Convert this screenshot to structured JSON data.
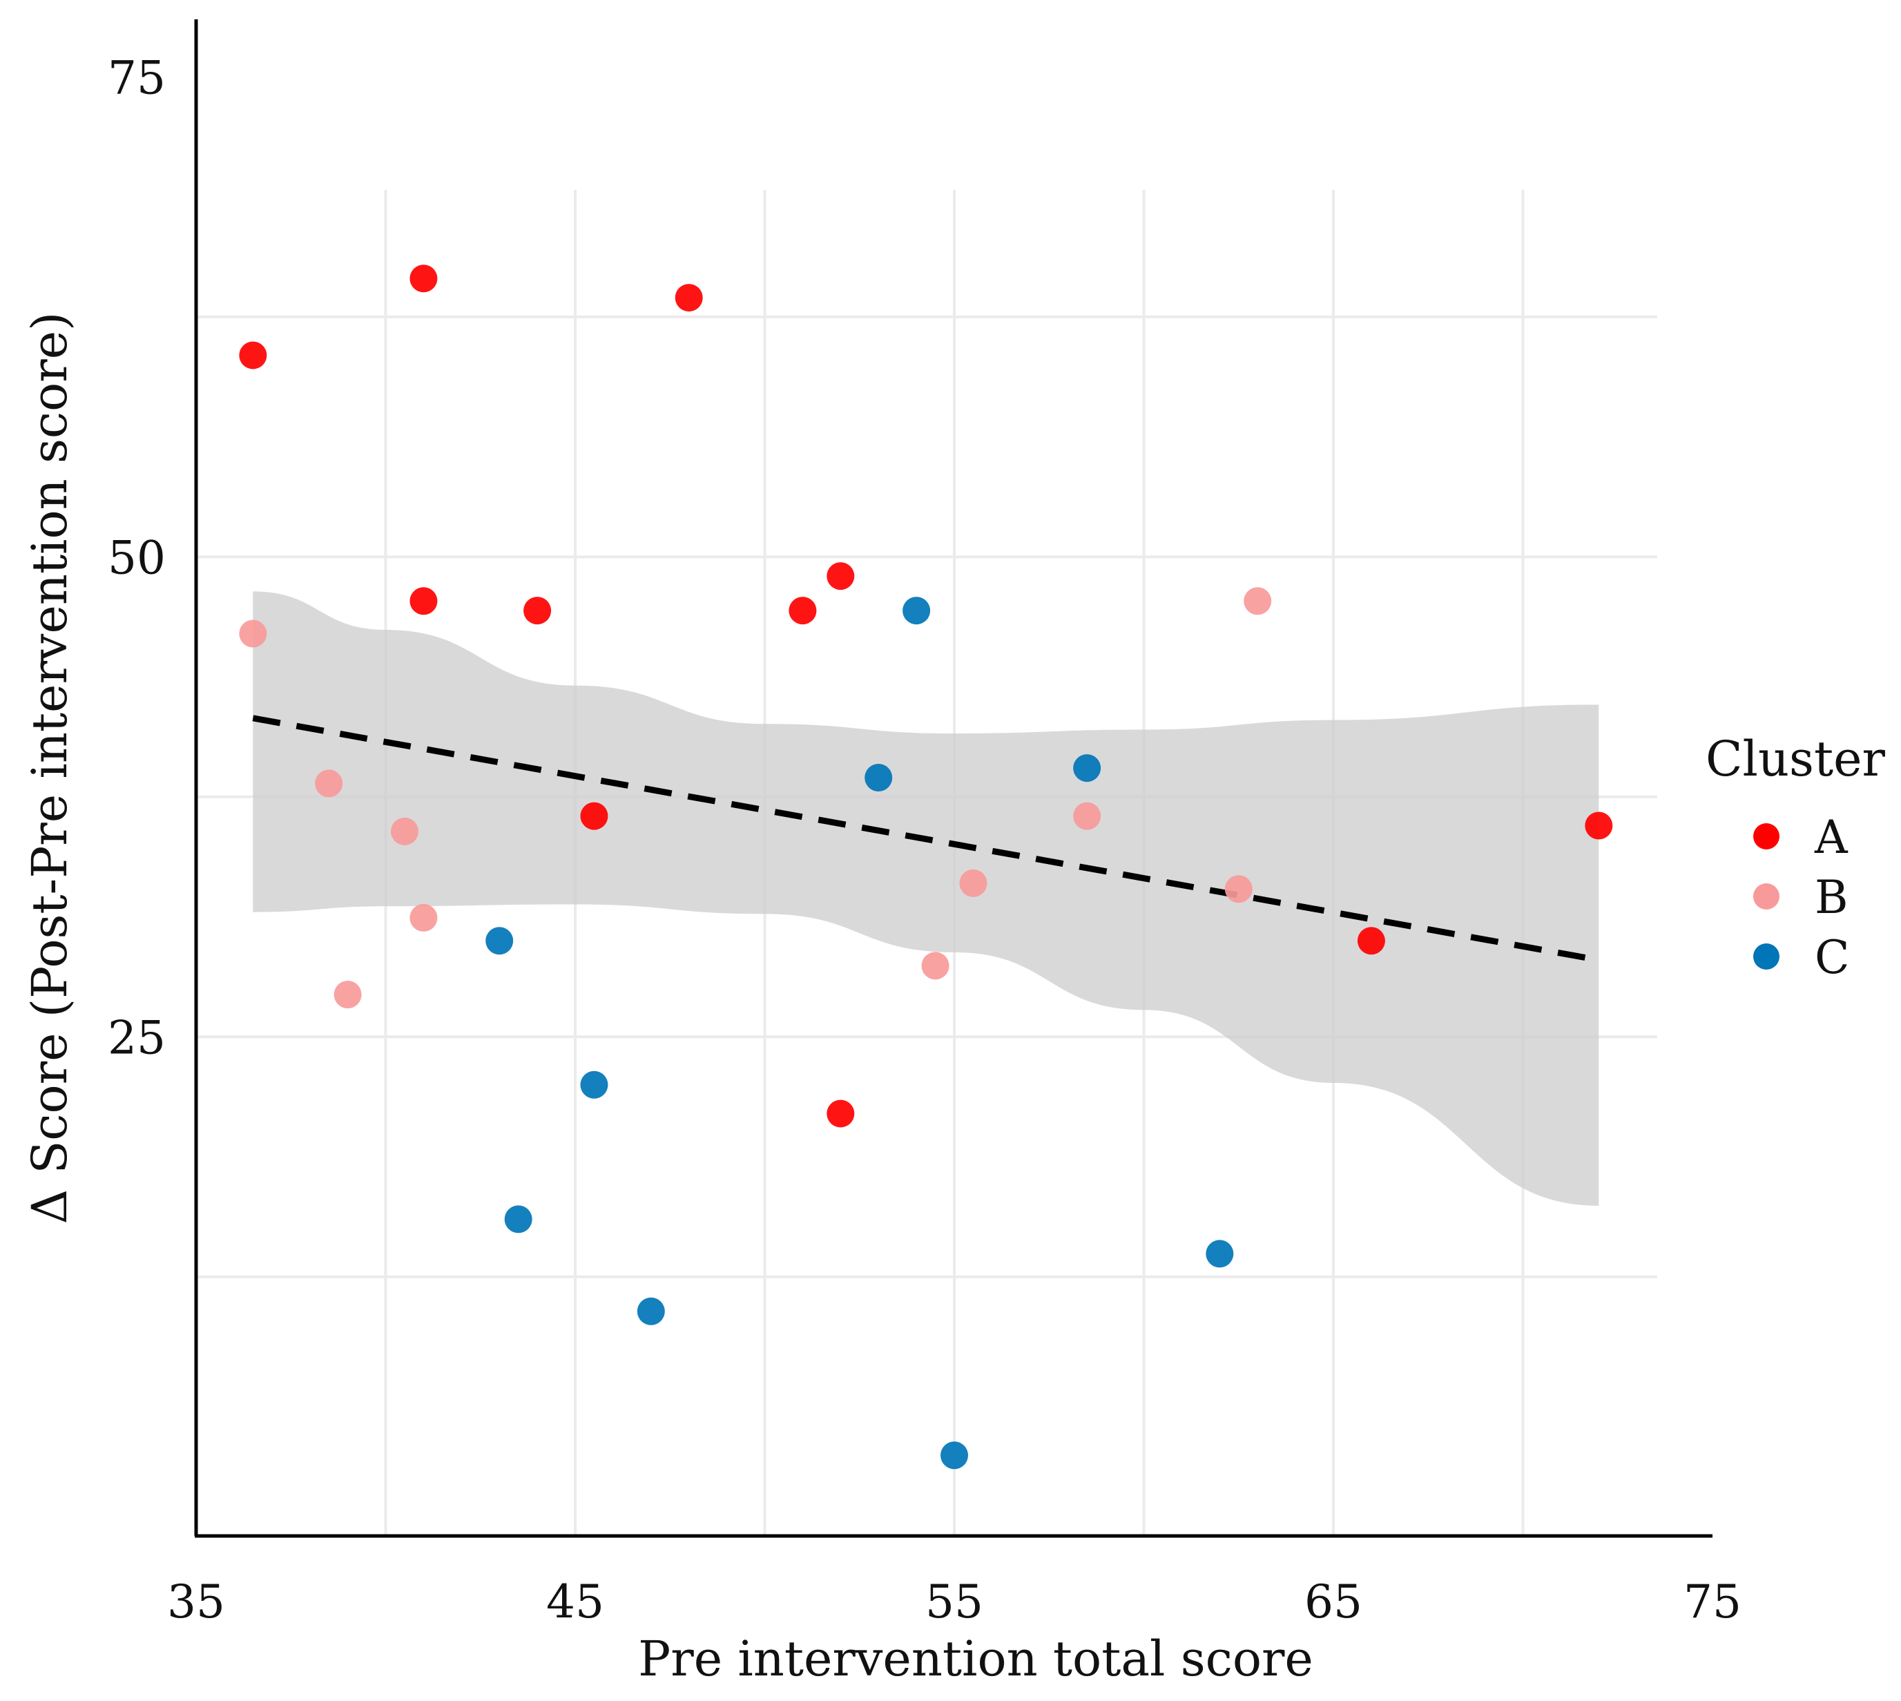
{
  "chart_data": {
    "type": "scatter",
    "title": "",
    "xlabel": "Pre intervention total score",
    "ylabel": "Δ  Score (Post-Pre intervention score)",
    "xlim": [
      35,
      75
    ],
    "ylim": [
      -1,
      78
    ],
    "x_ticks": [
      35,
      45,
      55,
      65,
      75
    ],
    "x_tick_labels": [
      "35",
      "45",
      "55",
      "65",
      "75"
    ],
    "y_ticks": [
      25,
      50,
      75
    ],
    "y_tick_labels": [
      "25",
      "50",
      "75"
    ],
    "grid": true,
    "x_gridlines": [
      40,
      45,
      50,
      55,
      60,
      65,
      70
    ],
    "y_gridlines": [
      12.5,
      25,
      37.5,
      50,
      62.5
    ],
    "legend": {
      "title": "Cluster",
      "position": "right",
      "entries": [
        {
          "label": "A",
          "color": "#ff0000"
        },
        {
          "label": "B",
          "color": "#f99a9a"
        },
        {
          "label": "C",
          "color": "#0075b7"
        }
      ]
    },
    "series": [
      {
        "name": "A",
        "color": "#ff0000",
        "points": [
          {
            "x": 36.5,
            "y": 60.5
          },
          {
            "x": 41,
            "y": 64.5
          },
          {
            "x": 48,
            "y": 63.5
          },
          {
            "x": 41,
            "y": 47.7
          },
          {
            "x": 44,
            "y": 47.2
          },
          {
            "x": 51,
            "y": 47.2
          },
          {
            "x": 52,
            "y": 49.0
          },
          {
            "x": 45.5,
            "y": 36.5
          },
          {
            "x": 72,
            "y": 36.0
          },
          {
            "x": 66,
            "y": 30.0
          },
          {
            "x": 52,
            "y": 21.0
          }
        ]
      },
      {
        "name": "B",
        "color": "#f99a9a",
        "points": [
          {
            "x": 36.5,
            "y": 46.0
          },
          {
            "x": 38.5,
            "y": 38.2
          },
          {
            "x": 40.5,
            "y": 35.7
          },
          {
            "x": 41,
            "y": 31.2
          },
          {
            "x": 39,
            "y": 27.2
          },
          {
            "x": 55.5,
            "y": 33.0
          },
          {
            "x": 54.5,
            "y": 28.7
          },
          {
            "x": 58.5,
            "y": 36.5
          },
          {
            "x": 62.5,
            "y": 32.7
          },
          {
            "x": 63,
            "y": 47.7
          }
        ]
      },
      {
        "name": "C",
        "color": "#0075b7",
        "points": [
          {
            "x": 54,
            "y": 47.2
          },
          {
            "x": 53,
            "y": 38.5
          },
          {
            "x": 58.5,
            "y": 39.0
          },
          {
            "x": 43,
            "y": 30.0
          },
          {
            "x": 45.5,
            "y": 22.5
          },
          {
            "x": 43.5,
            "y": 15.5
          },
          {
            "x": 47,
            "y": 10.7
          },
          {
            "x": 62,
            "y": 13.7
          },
          {
            "x": 55,
            "y": 3.2
          }
        ]
      }
    ],
    "regression": {
      "style": "dashed",
      "color": "#000000",
      "x_start": 36.5,
      "y_start": 41.6,
      "x_end": 72,
      "y_end": 29.0
    },
    "confidence_band": {
      "color": "#cccccc",
      "x": [
        36.5,
        40,
        45,
        50,
        55,
        60,
        65,
        72
      ],
      "upper": [
        48.2,
        46.2,
        43.3,
        41.3,
        40.8,
        41.0,
        41.5,
        42.3
      ],
      "lower": [
        31.5,
        31.8,
        31.9,
        31.4,
        29.4,
        26.4,
        22.6,
        16.2
      ]
    }
  }
}
